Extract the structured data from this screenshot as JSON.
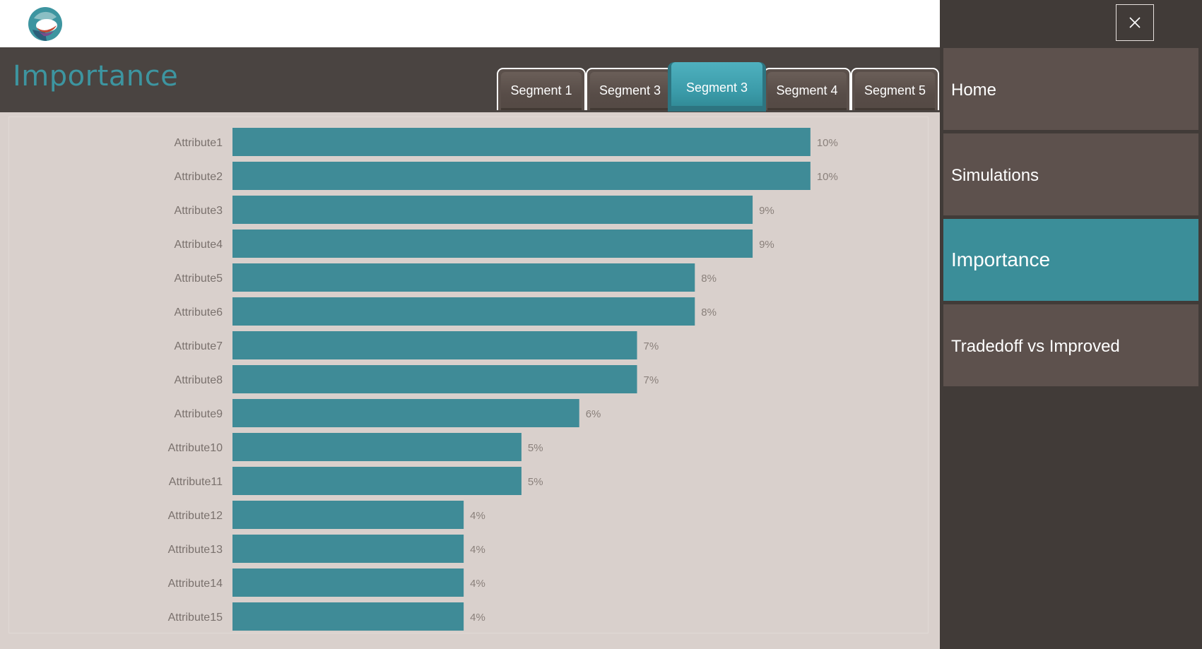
{
  "page": {
    "title": "Importance"
  },
  "logo": {
    "icon": "circular-logo-icon"
  },
  "tabs": [
    {
      "label": "Segment 1",
      "active": false
    },
    {
      "label": "Segment 3",
      "active": false
    },
    {
      "label": "Segment 3",
      "active": true
    },
    {
      "label": "Segment 4",
      "active": false
    },
    {
      "label": "Segment 5",
      "active": false
    }
  ],
  "sidebar": {
    "close_icon": "close-icon",
    "items": [
      {
        "label": "Home",
        "active": false
      },
      {
        "label": "Simulations",
        "active": false
      },
      {
        "label": "Importance",
        "active": true
      },
      {
        "label": "Tradedoff vs Improved",
        "active": false
      }
    ]
  },
  "colors": {
    "accent": "#3b8e99",
    "bar": "#3f8b97",
    "header_dark": "#4a4441",
    "sidebar_bg": "#413b38",
    "nav_item": "#5d514d",
    "chart_bg": "#d9d0cc"
  },
  "chart_data": {
    "type": "bar",
    "orientation": "horizontal",
    "categories": [
      "Attribute1",
      "Attribute2",
      "Attribute3",
      "Attribute4",
      "Attribute5",
      "Attribute6",
      "Attribute7",
      "Attribute8",
      "Attribute9",
      "Attribute10",
      "Attribute11",
      "Attribute12",
      "Attribute13",
      "Attribute14",
      "Attribute15"
    ],
    "values": [
      10,
      10,
      9,
      9,
      8,
      8,
      7,
      7,
      6,
      5,
      5,
      4,
      4,
      4,
      4
    ],
    "value_labels": [
      "10%",
      "10%",
      "9%",
      "9%",
      "8%",
      "8%",
      "7%",
      "7%",
      "6%",
      "5%",
      "5%",
      "4%",
      "4%",
      "4%",
      "4%"
    ],
    "unit": "%",
    "xlim": [
      0,
      14
    ],
    "grid": false,
    "legend": "none"
  }
}
